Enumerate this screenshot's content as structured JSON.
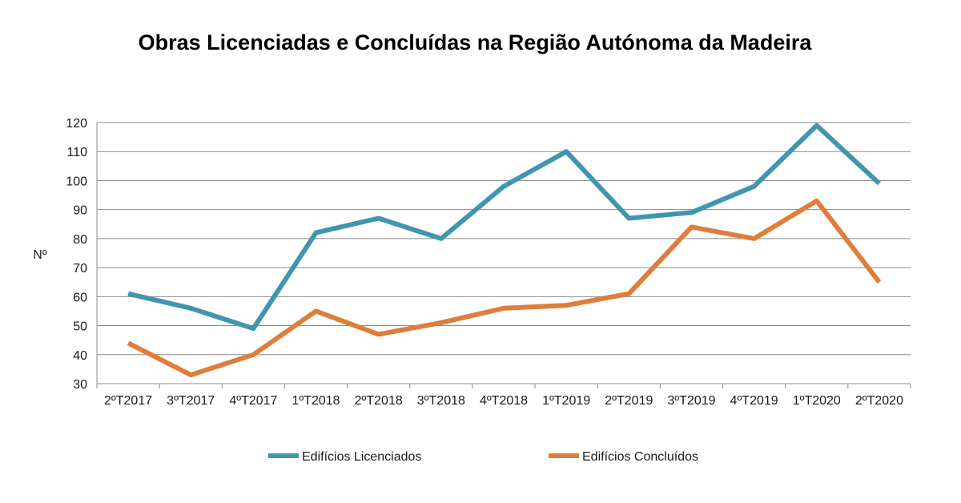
{
  "chart_data": {
    "type": "line",
    "title": "Obras Licenciadas e Concluídas na Região Autónoma da Madeira",
    "xlabel": "",
    "ylabel": "Nº",
    "categories": [
      "2ºT2017",
      "3ºT2017",
      "4ºT2017",
      "1ºT2018",
      "2ºT2018",
      "3ºT2018",
      "4ºT2018",
      "1ºT2019",
      "2ºT2019",
      "3ºT2019",
      "4ºT2019",
      "1ºT2020",
      "2ºT2020"
    ],
    "ylim": [
      30,
      120
    ],
    "yticks": [
      30,
      40,
      50,
      60,
      70,
      80,
      90,
      100,
      110,
      120
    ],
    "grid": true,
    "legend_position": "bottom",
    "series": [
      {
        "name": "Edifícios Licenciados",
        "color": "#4196AE",
        "values": [
          61,
          56,
          49,
          82,
          87,
          80,
          98,
          110,
          87,
          89,
          98,
          119,
          99
        ]
      },
      {
        "name": "Edifícios Concluídos",
        "color": "#E07D3A",
        "values": [
          44,
          33,
          40,
          55,
          47,
          51,
          56,
          57,
          61,
          84,
          80,
          93,
          65
        ]
      }
    ]
  }
}
